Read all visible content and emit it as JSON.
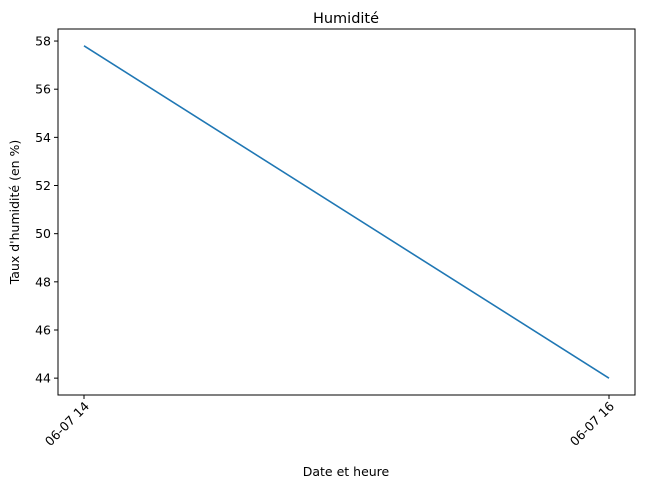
{
  "chart_data": {
    "type": "line",
    "title": "Humidité",
    "xlabel": "Date et heure",
    "ylabel": "Taux d'humidité (en %)",
    "x": [
      "06-07 14",
      "06-07 16"
    ],
    "series": [
      {
        "values": [
          57.8,
          44.0
        ]
      }
    ],
    "x_ticks": [
      "06-07 14",
      "06-07 16"
    ],
    "y_ticks": [
      "44",
      "46",
      "48",
      "50",
      "52",
      "54",
      "56",
      "58"
    ],
    "ylim": [
      43.3,
      58.5
    ],
    "grid": false,
    "line_color": "#1f77b4"
  }
}
